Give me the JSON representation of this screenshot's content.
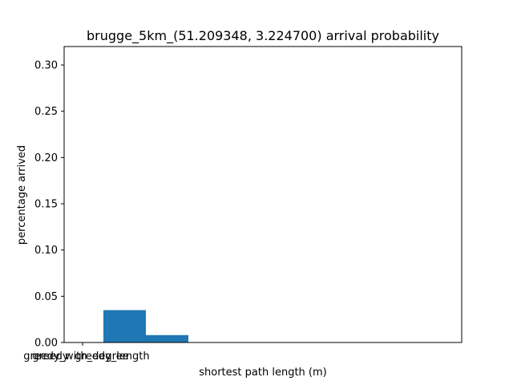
{
  "chart_data": {
    "type": "bar",
    "title": "brugge_5km_(51.209348, 3.224700) arrival probability",
    "xlabel": "shortest path length (m)",
    "ylabel": "percentage arrived",
    "ylim": [
      0,
      0.32
    ],
    "yticks": [
      "0.00",
      "0.05",
      "0.10",
      "0.15",
      "0.20",
      "0.25",
      "0.30"
    ],
    "categories": [
      "greedy",
      "greedy_with_degree",
      "greedy_length"
    ],
    "values": [
      0.0,
      0.035,
      0.008
    ],
    "bar_color": "#1f77b4",
    "grid": false
  }
}
